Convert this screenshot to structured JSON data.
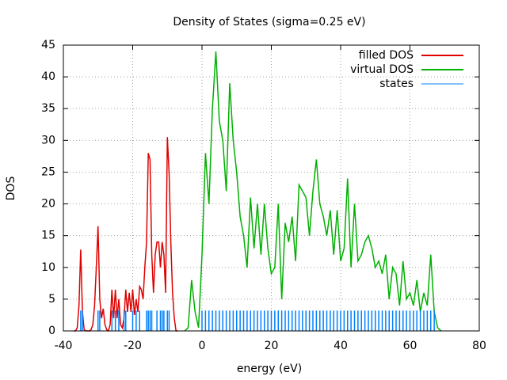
{
  "chart_data": {
    "type": "line",
    "title": "Density of States (sigma=0.25 eV)",
    "x_label": "energy (eV)",
    "y_label": "DOS",
    "xlim": [
      -40,
      80
    ],
    "xticks": [
      -40,
      -20,
      0,
      20,
      40,
      60,
      80
    ],
    "ylim": [
      0,
      45
    ],
    "yticks": [
      0,
      5,
      10,
      15,
      20,
      25,
      30,
      35,
      40,
      45
    ],
    "grid": true,
    "legend": "top-right",
    "series": [
      {
        "name": "filled DOS",
        "color": "#e00000",
        "style": "lines",
        "x": [
          -37,
          -36.5,
          -36,
          -35.5,
          -35,
          -34.5,
          -34,
          -33.5,
          -33,
          -32.5,
          -32,
          -31.5,
          -31,
          -30.5,
          -30,
          -29.5,
          -29,
          -28.5,
          -28,
          -27.5,
          -27,
          -26.5,
          -26,
          -25.5,
          -25,
          -24.5,
          -24,
          -23.5,
          -23,
          -22.5,
          -22,
          -21.5,
          -21,
          -20.5,
          -20,
          -19.5,
          -19,
          -18.5,
          -18,
          -17.5,
          -17,
          -16.5,
          -16,
          -15.5,
          -15,
          -14.5,
          -14,
          -13.5,
          -13,
          -12.5,
          -12,
          -11.5,
          -11,
          -10.5,
          -10,
          -9.5,
          -9,
          -8.5,
          -8,
          -7.5,
          -7
        ],
        "values": [
          0,
          0,
          0.5,
          4,
          12.8,
          3,
          0.2,
          0,
          0,
          0,
          0.2,
          1,
          4,
          10,
          16.5,
          5,
          2,
          3.5,
          1,
          0.2,
          0,
          1,
          6.5,
          2,
          6.5,
          2,
          5,
          1,
          0.5,
          2,
          6.5,
          3,
          6,
          3,
          6.5,
          2.5,
          5,
          3,
          7,
          6.5,
          5,
          10,
          14,
          28,
          27,
          12,
          6,
          12,
          14,
          14,
          10,
          14,
          12,
          6,
          30.5,
          25,
          14,
          6,
          2,
          0,
          0
        ]
      },
      {
        "name": "virtual DOS",
        "color": "#00b000",
        "style": "lines",
        "x": [
          -5,
          -4,
          -3,
          -2,
          -1,
          0,
          1,
          2,
          3,
          4,
          5,
          6,
          7,
          8,
          9,
          10,
          11,
          12,
          13,
          14,
          15,
          16,
          17,
          18,
          19,
          20,
          21,
          22,
          23,
          24,
          25,
          26,
          27,
          28,
          29,
          30,
          31,
          32,
          33,
          34,
          35,
          36,
          37,
          38,
          39,
          40,
          41,
          42,
          43,
          44,
          45,
          46,
          47,
          48,
          49,
          50,
          51,
          52,
          53,
          54,
          55,
          56,
          57,
          58,
          59,
          60,
          61,
          62,
          63,
          64,
          65,
          66,
          67,
          68,
          69
        ],
        "values": [
          0,
          0.5,
          8,
          3,
          0.5,
          12,
          28,
          20,
          35,
          44,
          33,
          30,
          22,
          39,
          30,
          25,
          18,
          15,
          10,
          21,
          13,
          20,
          12,
          20,
          13,
          9,
          10,
          20,
          5,
          17,
          14,
          18,
          11,
          23,
          22,
          21,
          15,
          22,
          27,
          20,
          18,
          15,
          19,
          12,
          19,
          11,
          13,
          24,
          10,
          20,
          11,
          12,
          14,
          15,
          13,
          10,
          11,
          9,
          12,
          5,
          10,
          9,
          4,
          11,
          5,
          6,
          4,
          8,
          3,
          6,
          4,
          12,
          3,
          0.5,
          0
        ]
      },
      {
        "name": "states",
        "color": "#0080ff",
        "style": "impulses",
        "x": [
          -35,
          -34.5,
          -30,
          -29.5,
          -26,
          -25,
          -24,
          -22.5,
          -22,
          -20,
          -19,
          -18,
          -16,
          -15.5,
          -15,
          -14.5,
          -13,
          -12,
          -11.5,
          -11,
          -10,
          -9.5,
          0,
          1,
          2,
          3,
          4,
          5,
          6,
          7,
          8,
          9,
          10,
          11,
          12,
          13,
          14,
          15,
          16,
          17,
          18,
          19,
          20,
          21,
          22,
          23,
          24,
          25,
          26,
          27,
          28,
          29,
          30,
          31,
          32,
          33,
          34,
          35,
          36,
          37,
          38,
          39,
          40,
          41,
          42,
          43,
          44,
          45,
          46,
          47,
          48,
          49,
          50,
          51,
          52,
          53,
          54,
          55,
          56,
          57,
          58,
          59,
          60,
          61,
          62,
          63,
          64,
          65,
          66,
          67
        ],
        "values": [
          3.2,
          3.2,
          3.2,
          3.2,
          3.2,
          3.2,
          3.2,
          3.2,
          3.2,
          3.2,
          3.2,
          3.2,
          3.2,
          3.2,
          3.2,
          3.2,
          3.2,
          3.2,
          3.2,
          3.2,
          3.2,
          3.2,
          3.2,
          3.2,
          3.2,
          3.2,
          3.2,
          3.2,
          3.2,
          3.2,
          3.2,
          3.2,
          3.2,
          3.2,
          3.2,
          3.2,
          3.2,
          3.2,
          3.2,
          3.2,
          3.2,
          3.2,
          3.2,
          3.2,
          3.2,
          3.2,
          3.2,
          3.2,
          3.2,
          3.2,
          3.2,
          3.2,
          3.2,
          3.2,
          3.2,
          3.2,
          3.2,
          3.2,
          3.2,
          3.2,
          3.2,
          3.2,
          3.2,
          3.2,
          3.2,
          3.2,
          3.2,
          3.2,
          3.2,
          3.2,
          3.2,
          3.2,
          3.2,
          3.2,
          3.2,
          3.2,
          3.2,
          3.2,
          3.2,
          3.2,
          3.2,
          3.2,
          3.2,
          3.2,
          3.2,
          3.2,
          3.2,
          3.2,
          3.2,
          3.2
        ]
      }
    ]
  }
}
